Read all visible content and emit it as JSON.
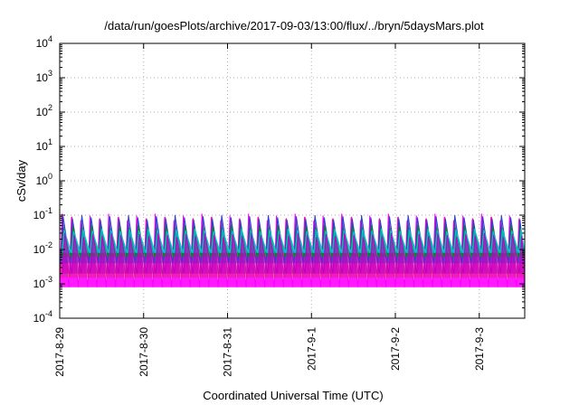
{
  "chart_data": {
    "type": "area",
    "title": "/data/run/goesPlots/archive/2017-09-03/13:00/flux/../bryn/5daysMars.plot",
    "xlabel": "Coordinated Universal Time (UTC)",
    "ylabel": "cSv/day",
    "yscale": "log",
    "ylim": [
      0.0001,
      10000
    ],
    "xlim": [
      "2017-08-29",
      "2017-09-03T13:00"
    ],
    "grid": true,
    "x_ticks": [
      "2017-8-29",
      "2017-8-30",
      "2017-8-31",
      "2017-9-1",
      "2017-9-2",
      "2017-9-3"
    ],
    "y_ticks": [
      {
        "value": 0.0001,
        "base": "10",
        "exp": "-4"
      },
      {
        "value": 0.001,
        "base": "10",
        "exp": "-3"
      },
      {
        "value": 0.01,
        "base": "10",
        "exp": "-2"
      },
      {
        "value": 0.1,
        "base": "10",
        "exp": "-1"
      },
      {
        "value": 1,
        "base": "10",
        "exp": "0"
      },
      {
        "value": 10,
        "base": "10",
        "exp": "1"
      },
      {
        "value": 100,
        "base": "10",
        "exp": "2"
      },
      {
        "value": 1000,
        "base": "10",
        "exp": "3"
      },
      {
        "value": 10000,
        "base": "10",
        "exp": "4"
      }
    ],
    "sawtooth": {
      "teeth_per_day": 9,
      "envelope_max": 0.11,
      "envelope_min": 0.0008
    },
    "series": [
      {
        "color": "#ff00ff",
        "peak": 0.11,
        "trough": 0.0008
      },
      {
        "color": "#e0218a",
        "peak": 0.09,
        "trough": 0.0015
      },
      {
        "color": "#2b3fd6",
        "peak": 0.1,
        "trough": 0.004
      },
      {
        "color": "#0a7f2e",
        "peak": 0.05,
        "trough": 0.006
      },
      {
        "color": "#00c8d8",
        "peak": 0.04,
        "trough": 0.008
      },
      {
        "color": "#c000c0",
        "peak": 0.03,
        "trough": 0.002
      }
    ]
  }
}
